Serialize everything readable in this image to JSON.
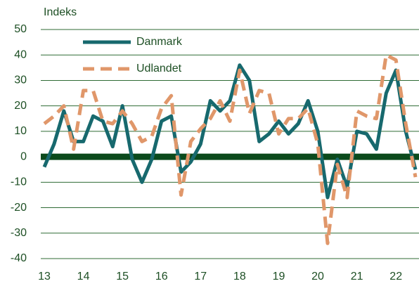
{
  "chart_data": {
    "type": "line",
    "ylabel": "Indeks",
    "x": [
      13,
      13.25,
      13.5,
      13.75,
      14,
      14.25,
      14.5,
      14.75,
      15,
      15.25,
      15.5,
      15.75,
      16,
      16.25,
      16.5,
      16.75,
      17,
      17.25,
      17.5,
      17.75,
      18,
      18.25,
      18.5,
      18.75,
      19,
      19.25,
      19.5,
      19.75,
      20,
      20.25,
      20.5,
      20.75,
      21,
      21.25,
      21.5,
      21.75,
      22,
      22.25,
      22.5
    ],
    "series": [
      {
        "name": "Danmark",
        "color": "#17696e",
        "dashed": false,
        "values": [
          -4,
          5,
          18,
          6,
          6,
          16,
          14,
          4,
          20,
          -1,
          -10,
          -1,
          14,
          16,
          -6,
          -2,
          5,
          22,
          18,
          22,
          36,
          30,
          6,
          9,
          14,
          9,
          13,
          22,
          10,
          -16,
          -1,
          -12,
          10,
          9,
          3,
          25,
          34,
          10,
          -5
        ]
      },
      {
        "name": "Udlandet",
        "color": "#e0976a",
        "dashed": true,
        "values": [
          13,
          16,
          20,
          3,
          26,
          26,
          14,
          13,
          18,
          13,
          6,
          8,
          19,
          24,
          -15,
          6,
          11,
          15,
          22,
          14,
          34,
          17,
          26,
          25,
          9,
          15,
          15,
          19,
          5,
          -34,
          -3,
          -16,
          18,
          16,
          15,
          40,
          38,
          13,
          -8
        ]
      }
    ],
    "xlim": [
      13,
      22.5
    ],
    "xticks": [
      13,
      14,
      15,
      16,
      17,
      18,
      19,
      20,
      21,
      22
    ],
    "ylim": [
      -40,
      50
    ],
    "yticks": [
      -40,
      -30,
      -20,
      -10,
      0,
      10,
      20,
      30,
      40,
      50
    ],
    "grid": true,
    "legend": "top-left"
  }
}
